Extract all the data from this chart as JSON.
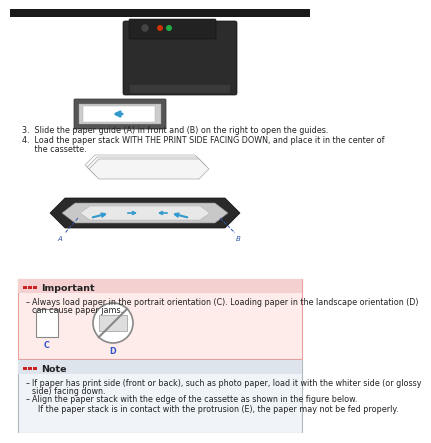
{
  "page_bg": "#ffffff",
  "step3_text": "3.  Slide the paper guide (A) in front and (B) on the right to open the guides.",
  "step4_line1": "4.  Load the paper stack WITH THE PRINT SIDE FACING DOWN, and place it in the center of",
  "step4_line2": "     the cassette.",
  "important_title": "Important",
  "important_bullet": "Always load paper in the portrait orientation (C). Loading paper in the landscape orientation (D) can cause paper jams.",
  "label_c": "C",
  "label_d": "D",
  "note_title": "Note",
  "note_bullet1": "If paper has print side (front or back), such as photo paper, load it with the whiter side (or glossy side) facing down.",
  "note_bullet2": "Align the paper stack with the edge of the cassette as shown in the figure below.",
  "note_sub": "If the paper stack is in contact with the protrusion (E), the paper may not be fed properly.",
  "important_bg": "#fdecea",
  "important_border": "#e8a0a0",
  "note_bg": "#f0f4f8",
  "note_border": "#b0b8c0",
  "red_icon_color": "#cc2222",
  "blue_label_color": "#3355cc",
  "text_color": "#222222",
  "body_text_size": 5.8,
  "title_text_size": 6.8,
  "note_indent_sub": 14
}
